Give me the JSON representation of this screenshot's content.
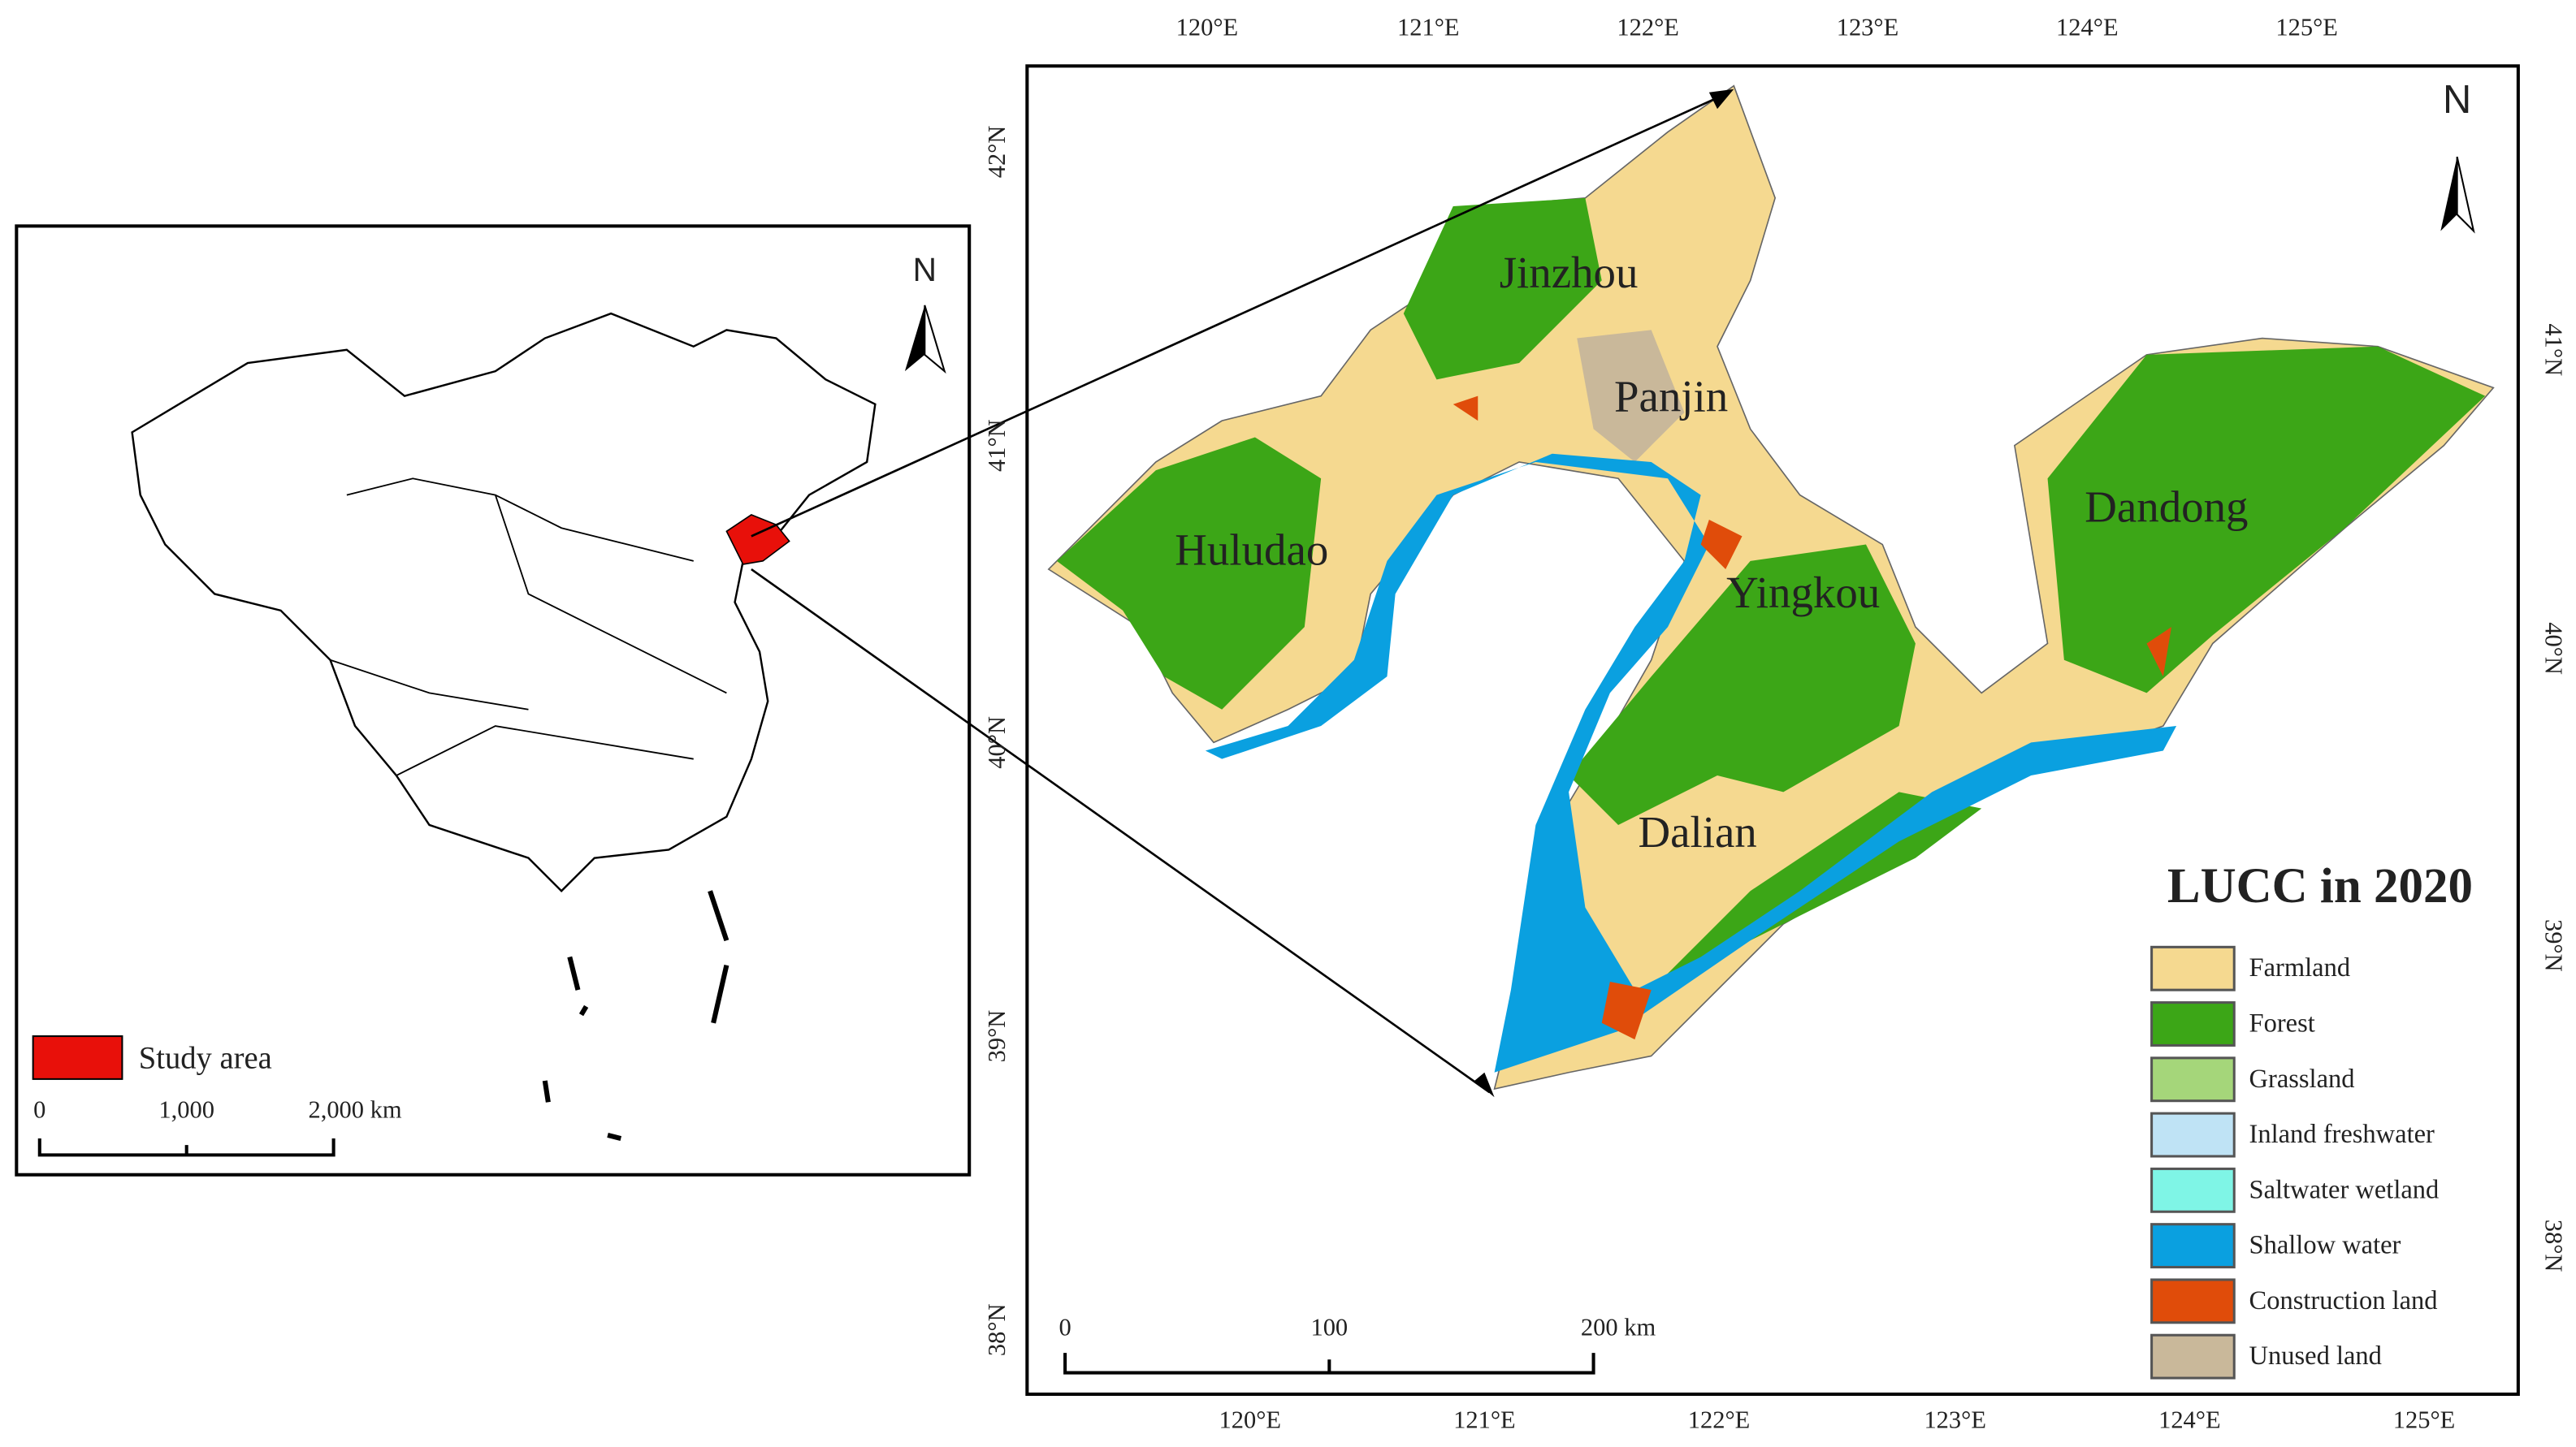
{
  "inset": {
    "north": "N",
    "legend_label": "Study area",
    "scale_labels": [
      "0",
      "1,000",
      "2,000 km"
    ]
  },
  "main": {
    "top_lon": [
      "120°E",
      "121°E",
      "122°E",
      "123°E",
      "124°E",
      "125°E"
    ],
    "bottom_lon": [
      "120°E",
      "121°E",
      "122°E",
      "123°E",
      "124°E",
      "125°E"
    ],
    "left_lat": [
      "42°N",
      "41°N",
      "40°N",
      "39°N",
      "38°N"
    ],
    "right_lat": [
      "41°N",
      "40°N",
      "39°N",
      "38°N"
    ],
    "north": "N",
    "cities": [
      "Jinzhou",
      "Panjin",
      "Huludao",
      "Yingkou",
      "Dandong",
      "Dalian"
    ],
    "scale_labels": [
      "0",
      "100",
      "200 km"
    ],
    "legend": {
      "title": "LUCC in 2020",
      "items": [
        {
          "label": "Farmland",
          "color": "#f5d990"
        },
        {
          "label": "Forest",
          "color": "#3ca617"
        },
        {
          "label": "Grassland",
          "color": "#a5d67a"
        },
        {
          "label": "Inland freshwater",
          "color": "#bfe3f5"
        },
        {
          "label": "Saltwater wetland",
          "color": "#7ff5e6"
        },
        {
          "label": "Shallow water",
          "color": "#0aa0e0"
        },
        {
          "label": "Construction land",
          "color": "#e04c0a"
        },
        {
          "label": "Unused land",
          "color": "#c9b89a"
        }
      ]
    }
  }
}
